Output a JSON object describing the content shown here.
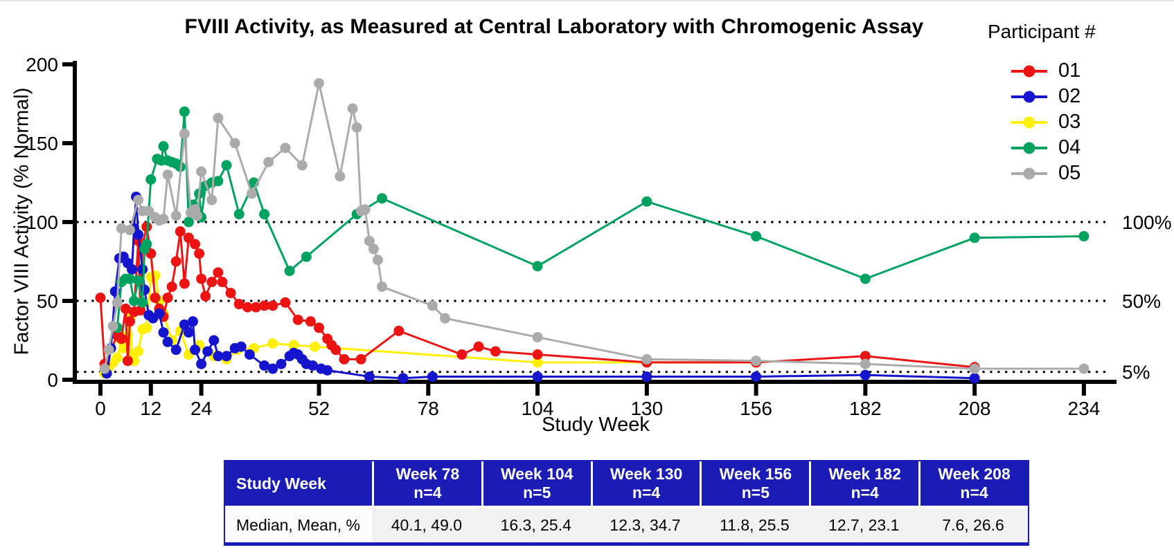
{
  "chart_data": {
    "type": "line",
    "title": "FVIII Activity, as Measured at Central Laboratory with Chromogenic Assay",
    "xlabel": "Study Week",
    "ylabel": "Factor VIII Activity (% Normal)",
    "legend_title": "Participant #",
    "x_ticks": [
      0,
      12,
      24,
      52,
      78,
      104,
      130,
      156,
      182,
      208,
      234
    ],
    "y_ticks": [
      0,
      50,
      100,
      150,
      200
    ],
    "xlim": [
      -6,
      241
    ],
    "ylim": [
      0,
      200
    ],
    "grid": "off",
    "legend_position": "top-right",
    "reference_lines": [
      {
        "value": 100,
        "label": "100%"
      },
      {
        "value": 50,
        "label": "50%"
      },
      {
        "value": 5,
        "label": "5%"
      }
    ],
    "draw_order": [
      "03",
      "01",
      "02",
      "04",
      "05"
    ],
    "series": [
      {
        "name": "01",
        "color": "#ec1313",
        "points": [
          [
            0,
            52
          ],
          [
            1,
            10
          ],
          [
            4,
            28
          ],
          [
            5,
            26
          ],
          [
            6,
            45
          ],
          [
            6.5,
            12
          ],
          [
            7,
            37
          ],
          [
            8,
            43
          ],
          [
            9,
            88
          ],
          [
            9.5,
            44
          ],
          [
            10,
            85
          ],
          [
            11,
            97
          ],
          [
            12,
            80
          ],
          [
            13,
            52
          ],
          [
            14,
            45
          ],
          [
            15,
            40
          ],
          [
            16,
            52
          ],
          [
            17,
            59
          ],
          [
            18,
            75
          ],
          [
            19,
            94
          ],
          [
            20,
            61
          ],
          [
            21,
            90
          ],
          [
            22.5,
            86
          ],
          [
            23.5,
            80
          ],
          [
            24,
            64
          ],
          [
            25,
            53
          ],
          [
            26.5,
            62
          ],
          [
            28,
            68
          ],
          [
            29,
            62
          ],
          [
            31,
            55
          ],
          [
            33,
            48
          ],
          [
            35,
            46
          ],
          [
            37,
            46
          ],
          [
            39,
            47
          ],
          [
            41,
            47
          ],
          [
            44,
            49
          ],
          [
            47,
            38
          ],
          [
            50,
            37
          ],
          [
            52,
            33
          ],
          [
            54,
            26
          ],
          [
            55,
            22
          ],
          [
            56,
            19
          ],
          [
            58,
            13
          ],
          [
            62,
            13
          ],
          [
            71,
            31
          ],
          [
            86,
            16
          ],
          [
            90,
            21
          ],
          [
            94,
            18
          ],
          [
            104,
            16
          ],
          [
            130,
            11
          ],
          [
            156,
            11
          ],
          [
            182,
            15
          ],
          [
            208,
            8
          ]
        ]
      },
      {
        "name": "02",
        "color": "#1515cd",
        "points": [
          [
            1.5,
            4
          ],
          [
            2.5,
            20
          ],
          [
            3.5,
            56
          ],
          [
            4.5,
            77
          ],
          [
            5.5,
            78
          ],
          [
            6.5,
            74
          ],
          [
            7.5,
            70
          ],
          [
            8,
            96
          ],
          [
            8.5,
            116
          ],
          [
            9,
            92
          ],
          [
            10,
            70
          ],
          [
            10.5,
            57
          ],
          [
            11.5,
            41
          ],
          [
            12.5,
            39
          ],
          [
            14,
            42
          ],
          [
            15,
            30
          ],
          [
            16,
            24
          ],
          [
            18,
            19
          ],
          [
            20,
            35
          ],
          [
            21,
            30
          ],
          [
            22,
            37
          ],
          [
            22.5,
            19
          ],
          [
            24,
            10
          ],
          [
            25.5,
            18
          ],
          [
            27,
            25
          ],
          [
            28,
            15
          ],
          [
            30,
            15
          ],
          [
            32,
            20
          ],
          [
            33.5,
            21
          ],
          [
            35.5,
            16
          ],
          [
            39,
            9
          ],
          [
            41,
            7
          ],
          [
            43,
            10
          ],
          [
            45,
            15
          ],
          [
            46,
            17
          ],
          [
            47,
            16
          ],
          [
            48,
            13
          ],
          [
            49,
            10
          ],
          [
            50.5,
            9
          ],
          [
            52.5,
            7
          ],
          [
            54,
            6
          ],
          [
            64,
            2
          ],
          [
            72,
            1
          ],
          [
            79,
            2
          ],
          [
            104,
            2
          ],
          [
            130,
            2
          ],
          [
            156,
            2
          ],
          [
            182,
            3
          ],
          [
            208,
            1
          ]
        ]
      },
      {
        "name": "03",
        "color": "#ffef00",
        "points": [
          [
            1,
            4
          ],
          [
            2,
            8
          ],
          [
            3,
            11
          ],
          [
            4,
            14
          ],
          [
            5,
            25
          ],
          [
            5.5,
            20
          ],
          [
            6.5,
            28
          ],
          [
            7,
            39
          ],
          [
            7.5,
            16
          ],
          [
            8,
            12
          ],
          [
            9,
            18
          ],
          [
            10,
            32
          ],
          [
            11,
            33
          ],
          [
            12,
            65
          ],
          [
            13,
            66
          ],
          [
            14,
            50
          ],
          [
            15,
            42
          ],
          [
            17,
            25
          ],
          [
            19,
            31
          ],
          [
            21,
            16
          ],
          [
            23.5,
            22
          ],
          [
            27,
            15
          ],
          [
            30,
            13
          ],
          [
            32.5,
            19
          ],
          [
            36.5,
            20
          ],
          [
            41,
            23
          ],
          [
            46,
            22
          ],
          [
            51,
            21
          ],
          [
            104,
            11
          ],
          [
            156,
            11
          ]
        ]
      },
      {
        "name": "04",
        "color": "#00a25f",
        "points": [
          [
            4,
            33
          ],
          [
            5,
            62
          ],
          [
            6,
            64
          ],
          [
            7,
            64
          ],
          [
            8,
            50
          ],
          [
            9,
            63
          ],
          [
            10,
            49
          ],
          [
            10.5,
            83
          ],
          [
            11,
            86
          ],
          [
            12,
            127
          ],
          [
            13.5,
            140
          ],
          [
            14.5,
            139
          ],
          [
            15,
            148
          ],
          [
            16,
            139
          ],
          [
            17,
            138
          ],
          [
            18,
            137
          ],
          [
            19,
            135
          ],
          [
            20,
            170
          ],
          [
            21,
            100
          ],
          [
            22,
            111
          ],
          [
            23.5,
            118
          ],
          [
            24,
            103
          ],
          [
            25,
            123
          ],
          [
            26.5,
            125
          ],
          [
            28,
            126
          ],
          [
            30,
            136
          ],
          [
            33,
            105
          ],
          [
            36.5,
            125
          ],
          [
            39,
            105
          ],
          [
            45,
            69
          ],
          [
            49,
            78
          ],
          [
            61,
            105
          ],
          [
            67,
            115
          ],
          [
            104,
            72
          ],
          [
            130,
            113
          ],
          [
            156,
            91
          ],
          [
            182,
            64
          ],
          [
            208,
            90
          ],
          [
            234,
            91
          ]
        ]
      },
      {
        "name": "05",
        "color": "#ababab",
        "points": [
          [
            1,
            7
          ],
          [
            2,
            19
          ],
          [
            3,
            34
          ],
          [
            4,
            49
          ],
          [
            5,
            96
          ],
          [
            7,
            95
          ],
          [
            9,
            114
          ],
          [
            10,
            107
          ],
          [
            11.5,
            107
          ],
          [
            13,
            103
          ],
          [
            14,
            101
          ],
          [
            15,
            102
          ],
          [
            16,
            130
          ],
          [
            18,
            104
          ],
          [
            20,
            156
          ],
          [
            21.5,
            106
          ],
          [
            22.5,
            108
          ],
          [
            23,
            104
          ],
          [
            24,
            132
          ],
          [
            26.5,
            114
          ],
          [
            28,
            166
          ],
          [
            32,
            150
          ],
          [
            36,
            118
          ],
          [
            40,
            138
          ],
          [
            44,
            147
          ],
          [
            48,
            136
          ],
          [
            52,
            188
          ],
          [
            57,
            129
          ],
          [
            60,
            172
          ],
          [
            61,
            160
          ],
          [
            62,
            107
          ],
          [
            63,
            108
          ],
          [
            64,
            88
          ],
          [
            65,
            83
          ],
          [
            66,
            76
          ],
          [
            67,
            59
          ],
          [
            79,
            47
          ],
          [
            82,
            39
          ],
          [
            104,
            27
          ],
          [
            130,
            13
          ],
          [
            156,
            12
          ],
          [
            182,
            10
          ],
          [
            208,
            7
          ],
          [
            234,
            7
          ]
        ]
      }
    ]
  },
  "table": {
    "header": {
      "label": "Study Week",
      "columns": [
        {
          "week": "Week 78",
          "n": "n=4"
        },
        {
          "week": "Week 104",
          "n": "n=5"
        },
        {
          "week": "Week 130",
          "n": "n=4"
        },
        {
          "week": "Week 156",
          "n": "n=5"
        },
        {
          "week": "Week 182",
          "n": "n=4"
        },
        {
          "week": "Week 208",
          "n": "n=4"
        }
      ]
    },
    "row": {
      "label": "Median, Mean, %",
      "values": [
        "40.1, 49.0",
        "16.3, 25.4",
        "12.3, 34.7",
        "11.8, 25.5",
        "12.7, 23.1",
        "7.6, 26.6"
      ]
    },
    "header_bg": "#1b1bb5"
  }
}
